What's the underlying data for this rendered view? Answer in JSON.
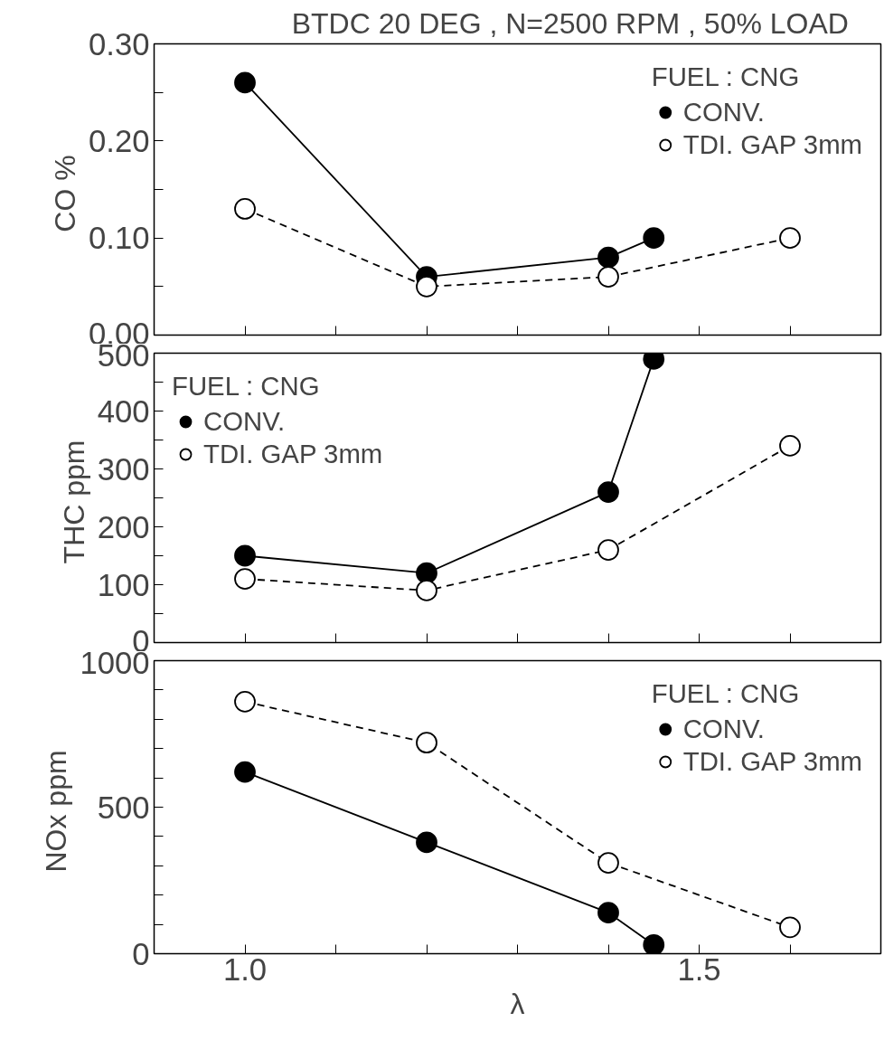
{
  "chart_data": [
    {
      "type": "line",
      "title": "BTDC  20 DEG ,  N=2500  RPM ,  50% LOAD",
      "ylabel": "CO  %",
      "legend_title": "FUEL : CNG",
      "legend": "top right",
      "marker": "circle",
      "tick_labels": "y",
      "xlim": [
        0.9,
        1.7
      ],
      "ylim": [
        0.0,
        0.3
      ],
      "xticks": [
        {
          "value": 1.0,
          "label": null
        },
        {
          "value": 1.1,
          "label": null
        },
        {
          "value": 1.2,
          "label": null
        },
        {
          "value": 1.3,
          "label": null
        },
        {
          "value": 1.4,
          "label": null
        },
        {
          "value": 1.5,
          "label": null
        },
        {
          "value": 1.6,
          "label": null
        }
      ],
      "yticks": [
        {
          "value": 0.0,
          "label": "0.00"
        },
        {
          "value": 0.05,
          "label": null
        },
        {
          "value": 0.1,
          "label": "0.10"
        },
        {
          "value": 0.15,
          "label": null
        },
        {
          "value": 0.2,
          "label": "0.20"
        },
        {
          "value": 0.25,
          "label": null
        },
        {
          "value": 0.3,
          "label": "0.30"
        }
      ],
      "series": [
        {
          "name": "CONV.",
          "color": "#000000",
          "line_style": "solid",
          "x": [
            1.0,
            1.2,
            1.4,
            1.45
          ],
          "values": [
            0.26,
            0.06,
            0.08,
            0.1
          ]
        },
        {
          "name": "TDI. GAP 3mm",
          "color": "#000000",
          "line_style": "dashed",
          "x": [
            1.0,
            1.2,
            1.4,
            1.6
          ],
          "values": [
            0.13,
            0.05,
            0.06,
            0.1
          ]
        }
      ]
    },
    {
      "type": "line",
      "ylabel": "THC  ppm",
      "legend_title": "FUEL : CNG",
      "legend": "top left",
      "marker": "circle",
      "tick_labels": "y",
      "xlim": [
        0.9,
        1.7
      ],
      "ylim": [
        0,
        500
      ],
      "xticks": [
        {
          "value": 1.0,
          "label": null
        },
        {
          "value": 1.1,
          "label": null
        },
        {
          "value": 1.2,
          "label": null
        },
        {
          "value": 1.3,
          "label": null
        },
        {
          "value": 1.4,
          "label": null
        },
        {
          "value": 1.5,
          "label": null
        },
        {
          "value": 1.6,
          "label": null
        }
      ],
      "yticks": [
        0,
        {
          "value": 50,
          "label": null
        },
        100,
        {
          "value": 150,
          "label": null
        },
        200,
        {
          "value": 250,
          "label": null
        },
        300,
        {
          "value": 350,
          "label": null
        },
        400,
        {
          "value": 450,
          "label": null
        },
        500
      ],
      "series": [
        {
          "name": "CONV.",
          "color": "#000000",
          "line_style": "solid",
          "x": [
            1.0,
            1.2,
            1.4,
            1.45
          ],
          "values": [
            150,
            120,
            260,
            490
          ]
        },
        {
          "name": "TDI. GAP 3mm",
          "color": "#000000",
          "line_style": "dashed",
          "x": [
            1.0,
            1.2,
            1.4,
            1.6
          ],
          "values": [
            110,
            90,
            160,
            340
          ]
        }
      ]
    },
    {
      "type": "line",
      "ylabel": "NOx  ppm",
      "xlabel": "λ",
      "legend_title": "FUEL : CNG",
      "legend": "top right",
      "marker": "circle",
      "xlim": [
        0.9,
        1.7
      ],
      "ylim": [
        0,
        1000
      ],
      "xticks": [
        {
          "value": 1.0,
          "label": "1.0"
        },
        {
          "value": 1.1,
          "label": null
        },
        {
          "value": 1.2,
          "label": null
        },
        {
          "value": 1.3,
          "label": null
        },
        {
          "value": 1.4,
          "label": null
        },
        {
          "value": 1.5,
          "label": "1.5"
        },
        {
          "value": 1.6,
          "label": null
        }
      ],
      "yticks": [
        0,
        {
          "value": 100,
          "label": null
        },
        {
          "value": 200,
          "label": null
        },
        {
          "value": 300,
          "label": null
        },
        {
          "value": 400,
          "label": null
        },
        500,
        {
          "value": 600,
          "label": null
        },
        {
          "value": 700,
          "label": null
        },
        {
          "value": 800,
          "label": null
        },
        {
          "value": 900,
          "label": null
        },
        1000
      ],
      "series": [
        {
          "name": "CONV.",
          "color": "#000000",
          "line_style": "solid",
          "x": [
            1.0,
            1.2,
            1.4,
            1.45
          ],
          "values": [
            620,
            380,
            140,
            30
          ]
        },
        {
          "name": "TDI. GAP 3mm",
          "color": "#000000",
          "line_style": "dashed",
          "x": [
            1.0,
            1.2,
            1.4,
            1.6
          ],
          "values": [
            860,
            720,
            310,
            90
          ]
        }
      ]
    }
  ]
}
